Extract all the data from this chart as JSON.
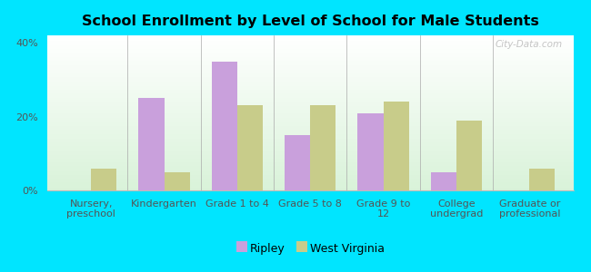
{
  "title": "School Enrollment by Level of School for Male Students",
  "categories": [
    "Nursery,\npreschool",
    "Kindergarten",
    "Grade 1 to 4",
    "Grade 5 to 8",
    "Grade 9 to\n12",
    "College\nundergrad",
    "Graduate or\nprofessional"
  ],
  "ripley": [
    0,
    25,
    35,
    15,
    21,
    5,
    0
  ],
  "west_virginia": [
    6,
    5,
    23,
    23,
    24,
    19,
    6
  ],
  "ripley_color": "#c9a0dc",
  "wv_color": "#c8cc8a",
  "bar_width": 0.35,
  "ylim": [
    0,
    42
  ],
  "yticks": [
    0,
    20,
    40
  ],
  "ytick_labels": [
    "0%",
    "20%",
    "40%"
  ],
  "background_color": "#00e5ff",
  "legend_labels": [
    "Ripley",
    "West Virginia"
  ],
  "watermark": "City-Data.com",
  "title_fontsize": 11.5,
  "tick_fontsize": 8,
  "legend_fontsize": 9
}
